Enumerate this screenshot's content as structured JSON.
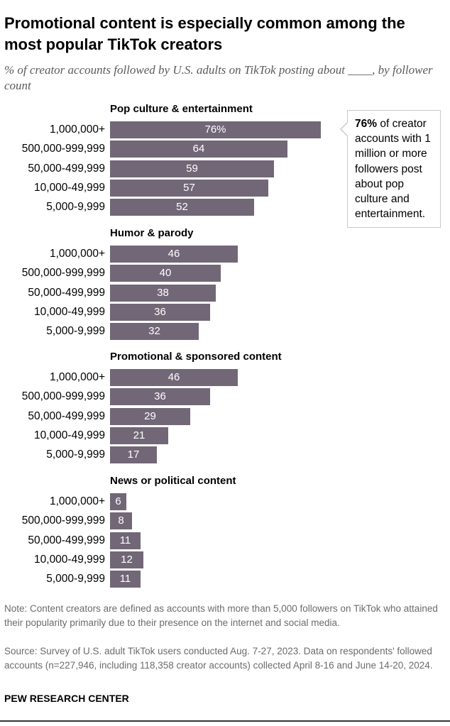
{
  "header": {
    "title": "Promotional content is especially common among the most popular TikTok creators",
    "subtitle": "% of creator accounts followed by U.S. adults on TikTok posting about ____, by follower count"
  },
  "colors": {
    "bar": "#716777",
    "callout_border": "#c8c8c8"
  },
  "chart_data": {
    "type": "bar",
    "orientation": "horizontal",
    "unit": "%",
    "categories": [
      "1,000,000+",
      "500,000-999,999",
      "50,000-499,999",
      "10,000-49,999",
      "5,000-9,999"
    ],
    "xlim": [
      0,
      100
    ],
    "panels": [
      {
        "title": "Pop culture & entertainment",
        "values": [
          76,
          64,
          59,
          57,
          52
        ],
        "labels": [
          "76%",
          "64",
          "59",
          "57",
          "52"
        ]
      },
      {
        "title": "Humor & parody",
        "values": [
          46,
          40,
          38,
          36,
          32
        ],
        "labels": [
          "46",
          "40",
          "38",
          "36",
          "32"
        ]
      },
      {
        "title": "Promotional & sponsored content",
        "values": [
          46,
          36,
          29,
          21,
          17
        ],
        "labels": [
          "46",
          "36",
          "29",
          "21",
          "17"
        ]
      },
      {
        "title": "News or political content",
        "values": [
          6,
          8,
          11,
          12,
          11
        ],
        "labels": [
          "6",
          "8",
          "11",
          "12",
          "11"
        ]
      }
    ],
    "annotation": {
      "bold": "76%",
      "text": " of creator accounts with 1 million or more followers post about pop culture and entertainment."
    }
  },
  "notes": {
    "note": "Note: Content creators are defined as accounts with more than 5,000 followers on TikTok who attained their popularity primarily due to their presence on the internet and social media.",
    "source": "Source: Survey of U.S. adult TikTok users conducted Aug. 7-27, 2023. Data on respondents' followed accounts (n=227,946, including 118,358 creator accounts) collected April 8-16 and June 14-20, 2024."
  },
  "footer": {
    "org": "PEW RESEARCH CENTER"
  }
}
